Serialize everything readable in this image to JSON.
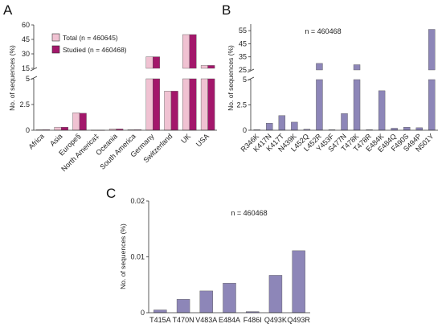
{
  "panels": {
    "a": {
      "letter": "A"
    },
    "b": {
      "letter": "B"
    },
    "c": {
      "letter": "C"
    }
  },
  "chart_data": [
    {
      "id": "A",
      "type": "bar",
      "ylabel": "No. of sequences (%)",
      "y_axis": "broken",
      "y_segments": [
        {
          "range": [
            0,
            5
          ],
          "ticks": [
            "0",
            "2.5",
            "5"
          ]
        },
        {
          "range": [
            15,
            60
          ],
          "ticks": [
            "15",
            "30",
            "45",
            "60"
          ]
        }
      ],
      "categories": [
        "Africa",
        "Asia",
        "Europe§",
        "North America‡",
        "Oceania",
        "South America",
        "Germany",
        "Switzerland",
        "UK",
        "USA"
      ],
      "series": [
        {
          "name": "Total (n = 460645)",
          "color": "#f0c2d2",
          "values": [
            0.05,
            0.3,
            1.7,
            0.02,
            0.12,
            0.05,
            27,
            3.8,
            50,
            18
          ]
        },
        {
          "name": "Studied (n = 460468)",
          "color": "#a3176b",
          "values": [
            0.05,
            0.3,
            1.65,
            0.02,
            0.12,
            0.05,
            27,
            3.8,
            50,
            18
          ]
        }
      ],
      "legend_position": "top-left"
    },
    {
      "id": "B",
      "type": "bar",
      "ylabel": "No. of sequences (%)",
      "y_axis": "broken",
      "y_segments": [
        {
          "range": [
            0,
            5
          ],
          "ticks": [
            "0",
            "2.5",
            "5"
          ]
        },
        {
          "range": [
            25,
            60
          ],
          "ticks": [
            "25",
            "35",
            "45",
            "55"
          ]
        }
      ],
      "annotation": "n = 460468",
      "color": "#8d86b8",
      "categories": [
        "R346K",
        "K417N",
        "K417T",
        "N439K",
        "L452Q",
        "L452R",
        "Y453F",
        "S477N",
        "T478K",
        "T478R",
        "E484K",
        "E484Q",
        "F490S",
        "S494P",
        "N501Y"
      ],
      "values": [
        0.05,
        0.7,
        1.45,
        0.8,
        0.1,
        30,
        0.05,
        1.65,
        29,
        0.05,
        3.9,
        0.2,
        0.3,
        0.25,
        56
      ]
    },
    {
      "id": "C",
      "type": "bar",
      "ylabel": "No. of sequences (%)",
      "ylim": [
        0,
        0.02
      ],
      "yticks": [
        "0",
        "0.01",
        "0.02"
      ],
      "annotation": "n = 460468",
      "color": "#8d86b8",
      "categories": [
        "T415A",
        "T470N",
        "V483A",
        "E484A",
        "F486I",
        "Q493K",
        "Q493R"
      ],
      "values": [
        0.0005,
        0.0024,
        0.0039,
        0.0053,
        0.0002,
        0.0067,
        0.0111
      ]
    }
  ]
}
